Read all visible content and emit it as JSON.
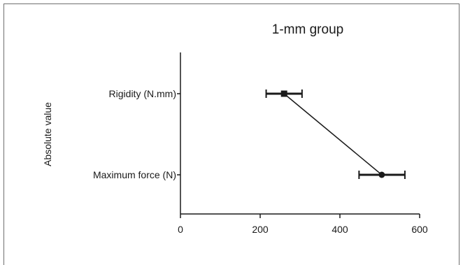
{
  "chart_data": {
    "type": "scatter",
    "title": "1-mm group",
    "xlabel": "",
    "ylabel": "Absolute value",
    "xlim": [
      0,
      600
    ],
    "xticks": [
      0,
      200,
      400,
      600
    ],
    "categories": [
      "Rigidity (N.mm)",
      "Maximum force (N)"
    ],
    "points": [
      {
        "category": "Rigidity (N.mm)",
        "value": 260,
        "err_low": 215,
        "err_high": 305,
        "marker": "square"
      },
      {
        "category": "Maximum force (N)",
        "value": 505,
        "err_low": 448,
        "err_high": 563,
        "marker": "circle"
      }
    ],
    "connected": true,
    "grid": false,
    "color": "#1a1a1a"
  }
}
